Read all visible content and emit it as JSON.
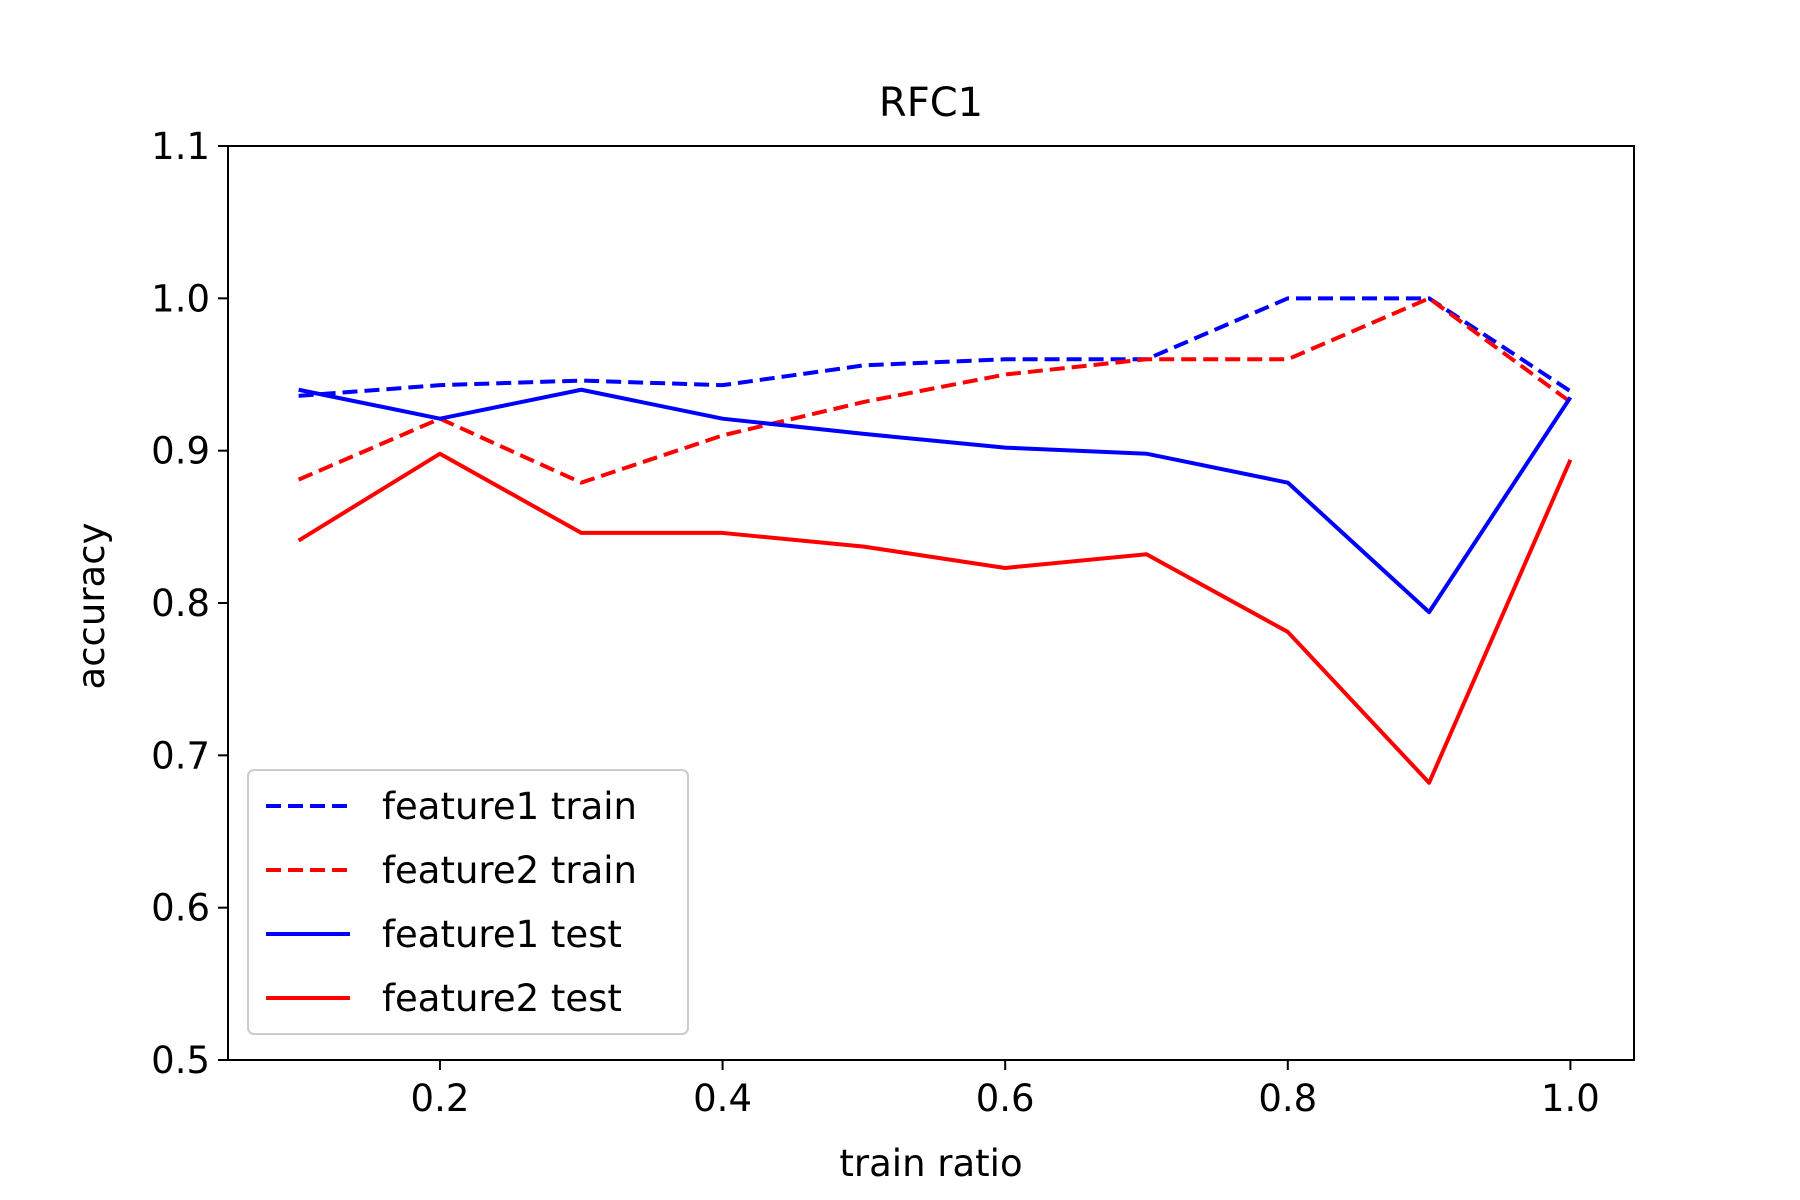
{
  "chart_data": {
    "type": "line",
    "title": "RFC1",
    "xlabel": "train ratio",
    "ylabel": "accuracy",
    "xlim": [
      0.05,
      1.045
    ],
    "ylim": [
      0.5,
      1.1
    ],
    "xticks": [
      0.2,
      0.4,
      0.6,
      0.8,
      1.0
    ],
    "xtick_labels": [
      "0.2",
      "0.4",
      "0.6",
      "0.8",
      "1.0"
    ],
    "yticks": [
      0.5,
      0.6,
      0.7,
      0.8,
      0.9,
      1.0,
      1.1
    ],
    "ytick_labels": [
      "0.5",
      "0.6",
      "0.7",
      "0.8",
      "0.9",
      "1.0",
      "1.1"
    ],
    "grid": false,
    "legend_position": "lower-left",
    "x": [
      0.1,
      0.2,
      0.3,
      0.4,
      0.5,
      0.6,
      0.7,
      0.8,
      0.9,
      1.0
    ],
    "series": [
      {
        "name": "feature1 train",
        "color": "#0000ff",
        "style": "dashed",
        "values": [
          0.936,
          0.943,
          0.946,
          0.943,
          0.956,
          0.96,
          0.96,
          1.0,
          1.0,
          0.939
        ]
      },
      {
        "name": "feature2 train",
        "color": "#ff0000",
        "style": "dashed",
        "values": [
          0.881,
          0.921,
          0.879,
          0.91,
          0.932,
          0.95,
          0.96,
          0.96,
          1.0,
          0.932
        ]
      },
      {
        "name": "feature1 test",
        "color": "#0000ff",
        "style": "solid",
        "values": [
          0.94,
          0.921,
          0.94,
          0.921,
          0.911,
          0.902,
          0.898,
          0.879,
          0.794,
          0.935
        ]
      },
      {
        "name": "feature2 test",
        "color": "#ff0000",
        "style": "solid",
        "values": [
          0.841,
          0.898,
          0.846,
          0.846,
          0.837,
          0.823,
          0.832,
          0.781,
          0.682,
          0.894
        ]
      }
    ]
  }
}
